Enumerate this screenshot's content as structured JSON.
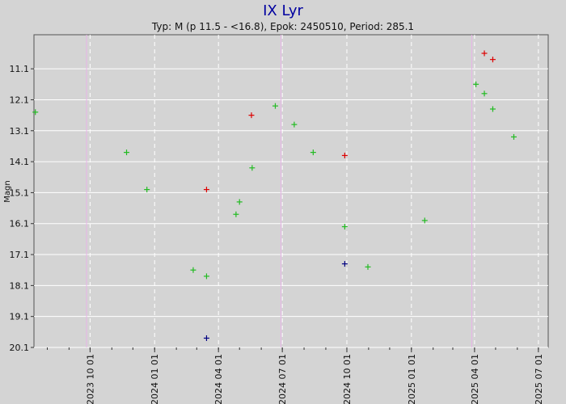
{
  "chart_data": {
    "type": "scatter",
    "title": "IX Lyr",
    "subtitle": "Typ: M (p 11.5 - <16.8), Epok: 2450510, Period: 285.1",
    "ylabel": "Magn",
    "xlabel": "",
    "x_range": [
      "2023-07-13",
      "2025-07-15"
    ],
    "y_range": [
      20.1,
      10.0
    ],
    "y_inverted": true,
    "grid": true,
    "y_ticks": [
      11.1,
      12.1,
      13.1,
      14.1,
      15.1,
      16.1,
      17.1,
      18.1,
      19.1,
      20.1
    ],
    "y_tick_labels": [
      "11.1",
      "12.1",
      "13.1",
      "14.1",
      "15.1",
      "16.1",
      "17.1",
      "18.1",
      "19.1",
      "20.1"
    ],
    "x_ticks": [
      "2023-10-01",
      "2024-01-01",
      "2024-04-01",
      "2024-07-01",
      "2024-10-01",
      "2025-01-01",
      "2025-04-01",
      "2025-07-01"
    ],
    "x_tick_labels": [
      "2023 10 01",
      "2024 01 01",
      "2024 04 01",
      "2024 07 01",
      "2024 10 01",
      "2025 01 01",
      "2025 04 01",
      "2025 07 01"
    ],
    "vertical_markers": [
      "2023-09-26",
      "2024-06-29",
      "2025-03-28"
    ],
    "colors": {
      "green": "#22bb22",
      "red": "#dd0000",
      "blue": "#000080",
      "grid": "#ffffff",
      "marker": "#e8b4e8",
      "background": "#d4d4d4",
      "title": "#0000a0"
    },
    "series": [
      {
        "color": "green",
        "points": [
          {
            "x": "2023-07-15",
            "y": 12.5
          },
          {
            "x": "2023-11-22",
            "y": 13.8
          },
          {
            "x": "2023-12-21",
            "y": 15.0
          },
          {
            "x": "2024-02-25",
            "y": 17.6
          },
          {
            "x": "2024-03-15",
            "y": 17.8
          },
          {
            "x": "2024-04-26",
            "y": 15.8
          },
          {
            "x": "2024-05-01",
            "y": 15.4
          },
          {
            "x": "2024-05-19",
            "y": 14.3
          },
          {
            "x": "2024-06-21",
            "y": 12.3
          },
          {
            "x": "2024-07-18",
            "y": 12.9
          },
          {
            "x": "2024-08-14",
            "y": 13.8
          },
          {
            "x": "2024-09-28",
            "y": 16.2
          },
          {
            "x": "2024-10-31",
            "y": 17.5
          },
          {
            "x": "2025-01-20",
            "y": 16.0
          },
          {
            "x": "2025-04-03",
            "y": 11.6
          },
          {
            "x": "2025-04-15",
            "y": 11.9
          },
          {
            "x": "2025-04-27",
            "y": 12.4
          },
          {
            "x": "2025-05-27",
            "y": 13.3
          }
        ]
      },
      {
        "color": "red",
        "points": [
          {
            "x": "2024-03-15",
            "y": 15.0
          },
          {
            "x": "2024-05-18",
            "y": 12.6
          },
          {
            "x": "2024-09-28",
            "y": 13.9
          },
          {
            "x": "2025-04-15",
            "y": 10.6
          },
          {
            "x": "2025-04-27",
            "y": 10.8
          }
        ]
      },
      {
        "color": "blue",
        "points": [
          {
            "x": "2024-03-15",
            "y": 19.8
          },
          {
            "x": "2024-09-28",
            "y": 17.4
          }
        ]
      }
    ]
  }
}
